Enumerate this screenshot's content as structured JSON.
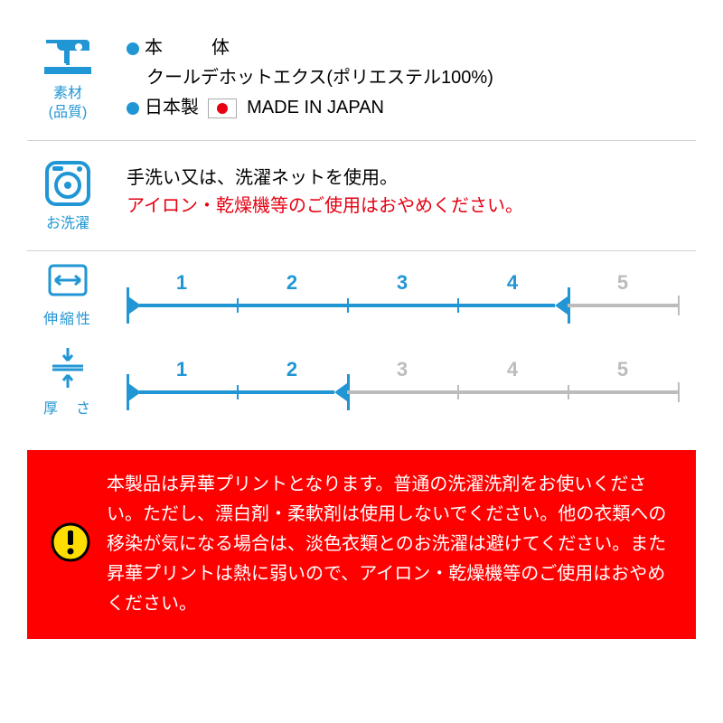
{
  "colors": {
    "blue": "#2196d4",
    "gray": "#bcbcbc",
    "red": "#e60012",
    "warn_bg": "#ff0000",
    "warn_text": "#ffffff",
    "warn_icon_bg": "#ffdd00",
    "text": "#333333"
  },
  "material": {
    "icon_label": "素材\n(品質)",
    "line1_label": "本",
    "line1_label2": "体",
    "line2": "クールデホットエクス(ポリエステル100%)",
    "line3_label": "日本製",
    "line3_made": "MADE IN JAPAN"
  },
  "washing": {
    "icon_label": "お洗濯",
    "line1": "手洗い又は、洗濯ネットを使用。",
    "line2": "アイロン・乾燥機等のご使用はおやめください。"
  },
  "stretch": {
    "label": "伸縮性",
    "value": 4,
    "max": 5
  },
  "thickness": {
    "label": "厚　さ",
    "value": 2,
    "max": 5
  },
  "warning": {
    "text": "本製品は昇華プリントとなります。普通の洗濯洗剤をお使いください。ただし、漂白剤・柔軟剤は使用しないでください。他の衣類への移染が気になる場合は、淡色衣類とのお洗濯は避けてください。また昇華プリントは熱に弱いので、アイロン・乾燥機等のご使用はおやめください。"
  }
}
